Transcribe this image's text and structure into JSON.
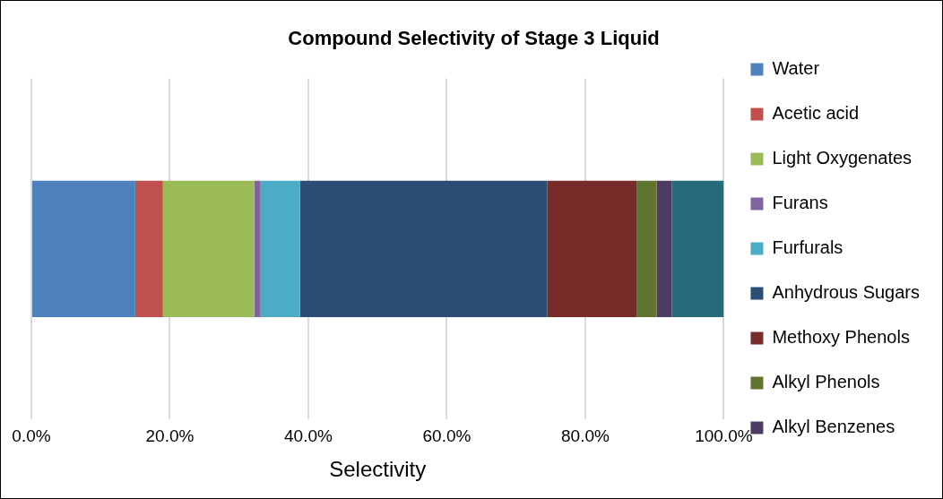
{
  "chart_data": {
    "type": "bar",
    "orientation": "horizontal",
    "stacked": true,
    "title": "Compound Selectivity of Stage 3 Liquid",
    "xlabel": "Selectivity",
    "categories": [
      null
    ],
    "series": [
      {
        "name": "Water",
        "color": "#4f81bd",
        "values": [
          15.0
        ]
      },
      {
        "name": "Acetic acid",
        "color": "#c0504d",
        "values": [
          4.0
        ]
      },
      {
        "name": "Light Oxygenates",
        "color": "#9bbb59",
        "values": [
          13.2
        ]
      },
      {
        "name": "Furans",
        "color": "#8064a2",
        "values": [
          0.9
        ]
      },
      {
        "name": "Furfurals",
        "color": "#4bacc6",
        "values": [
          5.7
        ]
      },
      {
        "name": "Anhydrous Sugars",
        "color": "#2c4d75",
        "values": [
          35.7
        ]
      },
      {
        "name": "Methoxy Phenols",
        "color": "#772c2a",
        "values": [
          12.9
        ]
      },
      {
        "name": "Alkyl Phenols",
        "color": "#5f7530",
        "values": [
          2.9
        ]
      },
      {
        "name": "Alkyl Benzenes",
        "color": "#4d3b62",
        "values": [
          2.2
        ]
      },
      {
        "color": "#276a7c",
        "values": [
          7.5
        ]
      }
    ],
    "xlim": [
      0,
      100
    ],
    "xticks": [
      {
        "value": 0,
        "label": "0.0%"
      },
      {
        "value": 20,
        "label": "20.0%"
      },
      {
        "value": 40,
        "label": "40.0%"
      },
      {
        "value": 60,
        "label": "60.0%"
      },
      {
        "value": 80,
        "label": "80.0%"
      },
      {
        "value": 100,
        "label": "100.0%"
      }
    ],
    "grid": "x",
    "legend": "right"
  }
}
